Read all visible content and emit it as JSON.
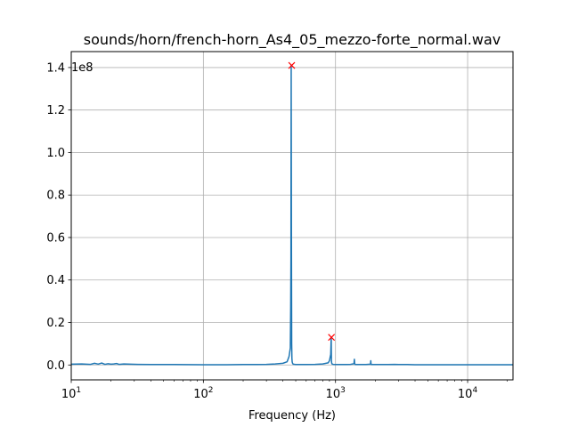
{
  "chart_data": {
    "type": "line",
    "title": "sounds/horn/french-horn_As4_05_mezzo-forte_normal.wav",
    "xlabel": "Frequency (Hz)",
    "ylabel": "",
    "x_scale": "log",
    "xlim": [
      10,
      22050
    ],
    "ylim": [
      -0.07,
      1.475
    ],
    "y_offset_label": "1e8",
    "grid": true,
    "x_ticks": [
      {
        "value": 10,
        "base": "10",
        "exp": "1"
      },
      {
        "value": 100,
        "base": "10",
        "exp": "2"
      },
      {
        "value": 1000,
        "base": "10",
        "exp": "3"
      },
      {
        "value": 10000,
        "base": "10",
        "exp": "4"
      }
    ],
    "y_ticks": [
      {
        "value": 0.0,
        "label": "0.0"
      },
      {
        "value": 0.2,
        "label": "0.2"
      },
      {
        "value": 0.4,
        "label": "0.4"
      },
      {
        "value": 0.6,
        "label": "0.6"
      },
      {
        "value": 0.8,
        "label": "0.8"
      },
      {
        "value": 1.0,
        "label": "1.0"
      },
      {
        "value": 1.2,
        "label": "1.2"
      },
      {
        "value": 1.4,
        "label": "1.4"
      }
    ],
    "series": [
      {
        "color": "#1f77b4",
        "x": [
          10,
          12,
          14,
          15,
          16,
          17,
          18,
          19,
          20,
          21,
          22,
          23,
          25,
          28,
          32,
          40,
          60,
          100,
          150,
          200,
          250,
          300,
          350,
          400,
          430,
          445,
          450,
          455,
          458,
          460,
          462,
          464,
          466,
          468,
          470,
          472,
          475,
          480,
          490,
          500,
          600,
          700,
          800,
          880,
          900,
          920,
          928,
          930,
          932,
          935,
          940,
          960,
          1000,
          1100,
          1200,
          1300,
          1380,
          1390,
          1395,
          1400,
          1410,
          1420,
          1500,
          1700,
          1840,
          1850,
          1855,
          1860,
          1870,
          1900,
          2200,
          2500,
          2800,
          3000,
          3500,
          4000,
          5000,
          7000,
          10000,
          15000,
          22050
        ],
        "y": [
          0.004,
          0.005,
          0.003,
          0.008,
          0.004,
          0.009,
          0.003,
          0.006,
          0.004,
          0.005,
          0.007,
          0.003,
          0.005,
          0.004,
          0.003,
          0.002,
          0.002,
          0.001,
          0.001,
          0.002,
          0.002,
          0.003,
          0.005,
          0.008,
          0.015,
          0.04,
          0.06,
          0.08,
          0.27,
          0.5,
          1.41,
          0.6,
          0.1,
          0.03,
          0.015,
          0.01,
          0.006,
          0.004,
          0.003,
          0.002,
          0.002,
          0.003,
          0.005,
          0.01,
          0.02,
          0.05,
          0.13,
          0.06,
          0.02,
          0.01,
          0.005,
          0.003,
          0.002,
          0.002,
          0.002,
          0.003,
          0.006,
          0.027,
          0.01,
          0.005,
          0.003,
          0.002,
          0.002,
          0.002,
          0.004,
          0.02,
          0.008,
          0.004,
          0.002,
          0.002,
          0.002,
          0.002,
          0.003,
          0.002,
          0.002,
          0.001,
          0.001,
          0.001,
          0.001,
          0.001,
          0.001
        ]
      }
    ],
    "peaks": [
      {
        "x": 466,
        "y": 1.41,
        "marker": "x",
        "color": "#ff0000"
      },
      {
        "x": 932,
        "y": 0.13,
        "marker": "x",
        "color": "#ff0000"
      }
    ]
  }
}
